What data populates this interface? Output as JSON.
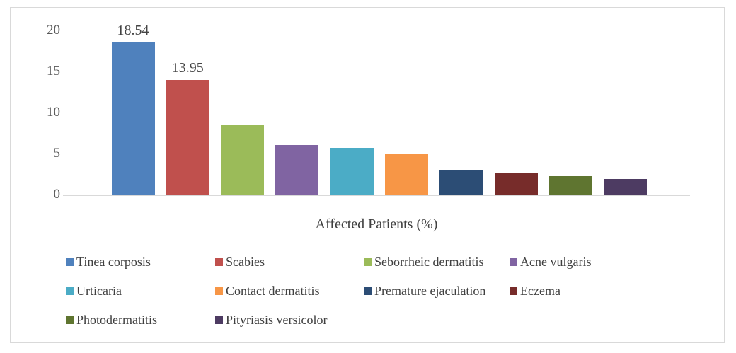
{
  "chart_data": {
    "type": "bar",
    "title": "",
    "xlabel": "Affected Patients (%)",
    "ylabel": "",
    "ylim": [
      0,
      20
    ],
    "yticks": [
      0,
      5,
      10,
      15,
      20
    ],
    "grid": false,
    "legend_position": "bottom",
    "categories": [
      "Tinea corposis",
      "Scabies",
      "Seborrheic dermatitis",
      "Acne vulgaris",
      "Urticaria",
      "Contact dermatitis",
      "Premature ejaculation",
      "Eczema",
      "Photodermatitis",
      "Pityriasis versicolor"
    ],
    "values": [
      18.54,
      13.95,
      8.5,
      6.0,
      5.7,
      5.0,
      2.9,
      2.6,
      2.2,
      1.9
    ],
    "bar_labels": [
      "18.54",
      "13.95",
      "",
      "",
      "",
      "",
      "",
      "",
      "",
      ""
    ],
    "colors": [
      "#4F81BD",
      "#C0504D",
      "#9BBB59",
      "#8064A2",
      "#4BACC6",
      "#F79646",
      "#2C4D75",
      "#772C2A",
      "#5F7530",
      "#4D3B62"
    ]
  },
  "styles": {
    "frame_border": "#D9D9D9",
    "axis_line_color": "#D9D9D9",
    "tick_color": "#595959",
    "data_label_color": "#444444",
    "legend_text_color": "#404040",
    "background": "#FFFFFF"
  }
}
